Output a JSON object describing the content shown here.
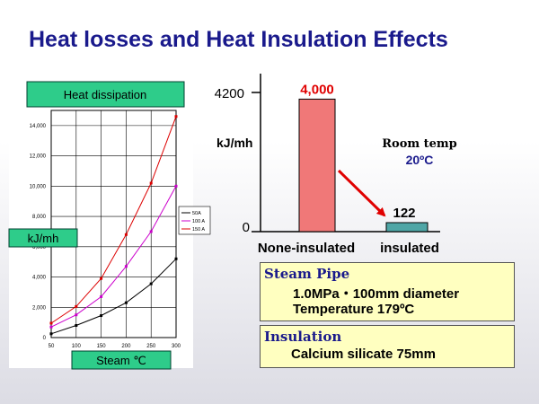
{
  "slide": {
    "title": "Heat losses and Heat Insulation Effects"
  },
  "chart_data": [
    {
      "type": "line",
      "title": "Heat dissipation",
      "xlabel": "Steam ℃",
      "ylabel": "kJ/mh",
      "x": [
        50,
        100,
        150,
        200,
        250,
        300
      ],
      "xticks": [
        "50",
        "100",
        "150",
        "200",
        "250",
        "300"
      ],
      "yticks": [
        "0",
        "2,000",
        "4,000",
        "6,000",
        "8,000",
        "10,000",
        "12,000",
        "14,000"
      ],
      "xlim": [
        50,
        300
      ],
      "ylim": [
        0,
        15000
      ],
      "grid": true,
      "legend_position": "right",
      "series": [
        {
          "name": "50A",
          "color": "#000000",
          "values": [
            250,
            800,
            1450,
            2300,
            3550,
            5200
          ]
        },
        {
          "name": "100 A",
          "color": "#cc00cc",
          "values": [
            700,
            1500,
            2700,
            4700,
            7000,
            10000
          ]
        },
        {
          "name": "150 A",
          "color": "#dd0000",
          "values": [
            950,
            2050,
            3900,
            6800,
            10200,
            14600
          ]
        }
      ]
    },
    {
      "type": "bar",
      "ylabel": "kJ/mh",
      "yticks": [
        "0",
        "4200"
      ],
      "ylim": [
        0,
        4200
      ],
      "categories": [
        "None-insulated",
        "insulated"
      ],
      "values": [
        4000,
        122
      ],
      "data_labels": [
        "4,000",
        "122"
      ],
      "colors": [
        "#f07878",
        "#4fa6a6"
      ],
      "label_colors": [
        "#e00000",
        "#000000"
      ],
      "arrow_color": "#e00000"
    }
  ],
  "room_temp": {
    "label": "Room temp",
    "value": "20ºC"
  },
  "steam_pipe": {
    "heading": "Steam Pipe",
    "line1": "1.0MPa・100mm diameter",
    "line2": "Temperature 179ºC"
  },
  "insulation": {
    "heading": "Insulation",
    "line1": "Calcium silicate  75mm"
  }
}
